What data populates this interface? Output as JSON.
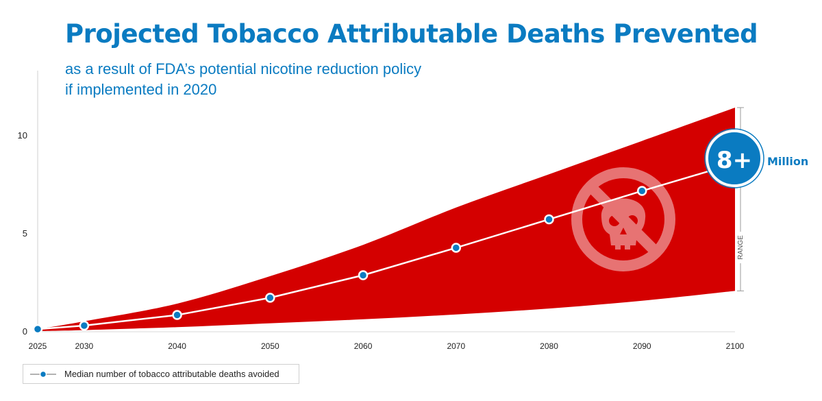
{
  "title": "Projected Tobacco Attributable Deaths Prevented",
  "subtitle_line1": "as a result of FDA’s potential nicotine reduction policy",
  "subtitle_line2": "if implemented in 2020",
  "badge": {
    "value": "8+",
    "unit": "Million"
  },
  "range_label": "RANGE",
  "legend_label": "Median number of tobacco attributable deaths avoided",
  "colors": {
    "accent": "#0a7bc1",
    "band": "#d40000",
    "median_line": "#ffffff"
  },
  "icon": "no-skull-icon",
  "chart_data": {
    "type": "area",
    "title": "Projected Tobacco Attributable Deaths Prevented",
    "subtitle": "as a result of FDA’s potential nicotine reduction policy if implemented in 2020",
    "xlabel": "",
    "ylabel": "",
    "x": [
      2025,
      2030,
      2040,
      2050,
      2060,
      2070,
      2080,
      2090,
      2100
    ],
    "xlim": [
      2025,
      2100
    ],
    "ylim": [
      0,
      11.5
    ],
    "yticks": [
      0,
      5,
      10
    ],
    "band_lower": [
      0.0,
      0.05,
      0.2,
      0.4,
      0.6,
      0.85,
      1.15,
      1.55,
      2.05
    ],
    "band_upper": [
      0.1,
      0.5,
      1.4,
      2.8,
      4.4,
      6.3,
      8.0,
      9.7,
      11.4
    ],
    "series": [
      {
        "name": "Median number of tobacco attributable deaths avoided",
        "values": [
          0.1,
          0.28,
          0.82,
          1.7,
          2.85,
          4.25,
          5.7,
          7.15,
          8.55
        ]
      }
    ],
    "grid": false,
    "legend": "bottom-left"
  }
}
